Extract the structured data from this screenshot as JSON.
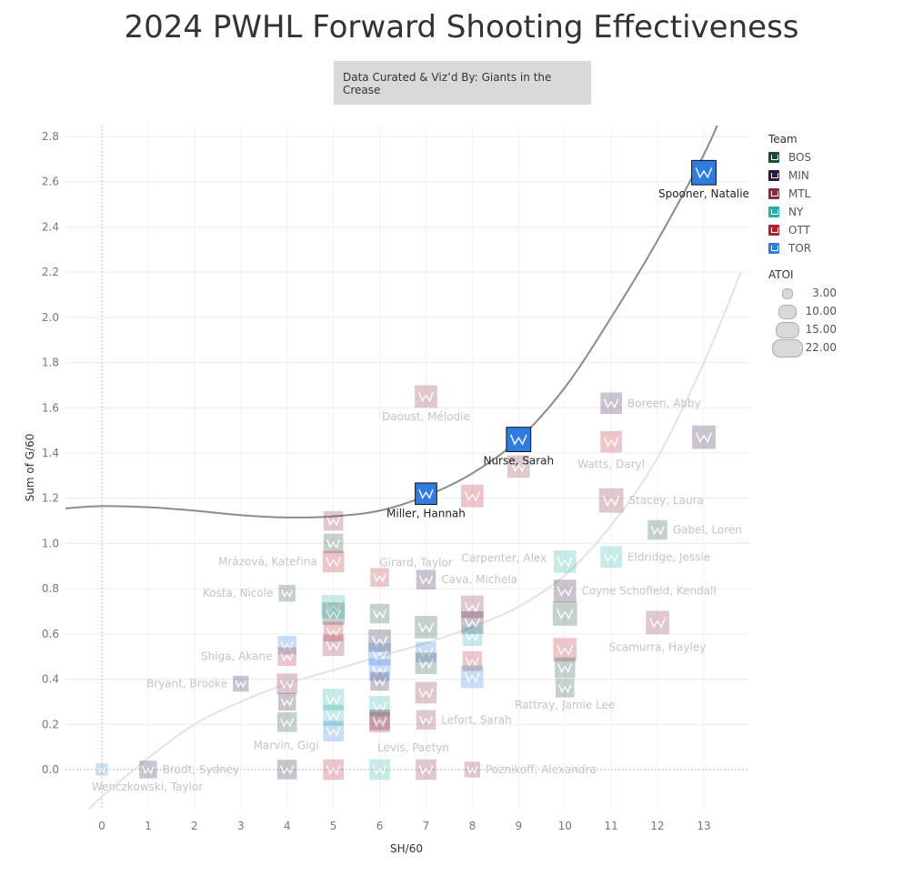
{
  "title": "2024 PWHL Forward Shooting Effectiveness",
  "subtitle": "Data Curated & Viz’d By: Giants in the Crease",
  "legend": {
    "team_title": "Team",
    "teams": [
      {
        "name": "BOS",
        "color": "#1e4a3d"
      },
      {
        "name": "MIN",
        "color": "#2e1a47"
      },
      {
        "name": "MTL",
        "color": "#8b2a3a"
      },
      {
        "name": "NY",
        "color": "#1fb3a8"
      },
      {
        "name": "OTT",
        "color": "#b8202f"
      },
      {
        "name": "TOR",
        "color": "#2f7de1"
      }
    ],
    "size_title": "ATOI",
    "sizes": [
      {
        "label": "3.00",
        "value": 3
      },
      {
        "label": "10.00",
        "value": 10
      },
      {
        "label": "15.00",
        "value": 15
      },
      {
        "label": "22.00",
        "value": 22
      }
    ]
  },
  "chart_data": {
    "type": "scatter",
    "title": "2024 PWHL Forward Shooting Effectiveness",
    "xlabel": "SH/60",
    "ylabel": "Sum of G/60",
    "xlim": [
      -0.8,
      13.8
    ],
    "ylim": [
      -0.18,
      2.84
    ],
    "xticks": [
      "0",
      "1",
      "2",
      "3",
      "4",
      "5",
      "6",
      "7",
      "8",
      "9",
      "10",
      "11",
      "12",
      "13"
    ],
    "yticks": [
      "0.0",
      "0.2",
      "0.4",
      "0.6",
      "0.8",
      "1.0",
      "1.2",
      "1.4",
      "1.6",
      "1.8",
      "2.0",
      "2.2",
      "2.4",
      "2.6",
      "2.8"
    ],
    "grid": true,
    "legend_position": "right",
    "trend_lines": [
      {
        "name": "upper",
        "color": "#8c8c8c",
        "points": [
          [
            -0.8,
            1.155
          ],
          [
            0,
            1.165
          ],
          [
            1,
            1.16
          ],
          [
            2,
            1.145
          ],
          [
            3,
            1.125
          ],
          [
            4,
            1.115
          ],
          [
            5,
            1.12
          ],
          [
            6,
            1.145
          ],
          [
            7,
            1.21
          ],
          [
            8,
            1.31
          ],
          [
            9,
            1.46
          ],
          [
            10,
            1.69
          ],
          [
            11,
            2.0
          ],
          [
            12,
            2.34
          ],
          [
            13,
            2.72
          ],
          [
            13.5,
            2.95
          ]
        ]
      },
      {
        "name": "lower",
        "color": "#e3e3e3",
        "points": [
          [
            -0.3,
            -0.18
          ],
          [
            0,
            -0.12
          ],
          [
            1,
            0.05
          ],
          [
            2,
            0.2
          ],
          [
            3,
            0.3
          ],
          [
            4,
            0.38
          ],
          [
            5,
            0.44
          ],
          [
            6,
            0.5
          ],
          [
            7,
            0.56
          ],
          [
            8,
            0.63
          ],
          [
            9,
            0.72
          ],
          [
            10,
            0.86
          ],
          [
            11,
            1.08
          ],
          [
            12,
            1.38
          ],
          [
            13,
            1.8
          ],
          [
            13.8,
            2.2
          ]
        ]
      }
    ],
    "points": [
      {
        "label": "Spooner, Natalie",
        "x": 13.0,
        "y": 2.64,
        "team": "TOR",
        "atoi": 19,
        "highlight": true
      },
      {
        "label": "Nurse, Sarah",
        "x": 9.0,
        "y": 1.46,
        "team": "TOR",
        "atoi": 19,
        "highlight": true
      },
      {
        "label": "Miller, Hannah",
        "x": 7.0,
        "y": 1.22,
        "team": "TOR",
        "atoi": 16,
        "highlight": true
      },
      {
        "label": "Daoust, Mélodie",
        "x": 7.0,
        "y": 1.65,
        "team": "MTL",
        "atoi": 17,
        "highlight": false
      },
      {
        "label": "Boreen, Abby",
        "x": 11.0,
        "y": 1.62,
        "team": "MIN",
        "atoi": 16,
        "highlight": false
      },
      {
        "label": "",
        "x": 13.0,
        "y": 1.47,
        "team": "MIN",
        "atoi": 18,
        "highlight": false
      },
      {
        "label": "Watts, Daryl",
        "x": 11.0,
        "y": 1.45,
        "team": "OTT",
        "atoi": 16,
        "highlight": false
      },
      {
        "label": "",
        "x": 9.0,
        "y": 1.34,
        "team": "MTL",
        "atoi": 17,
        "highlight": false
      },
      {
        "label": "",
        "x": 8.0,
        "y": 1.21,
        "team": "OTT",
        "atoi": 17,
        "highlight": false
      },
      {
        "label": "Stacey, Laura",
        "x": 11.0,
        "y": 1.19,
        "team": "MTL",
        "atoi": 19,
        "highlight": false
      },
      {
        "label": "Gabel, Loren",
        "x": 12.0,
        "y": 1.06,
        "team": "BOS",
        "atoi": 14,
        "highlight": false
      },
      {
        "label": "",
        "x": 5.0,
        "y": 1.1,
        "team": "MTL",
        "atoi": 14,
        "highlight": false
      },
      {
        "label": "",
        "x": 5.0,
        "y": 1.0,
        "team": "BOS",
        "atoi": 14,
        "highlight": false
      },
      {
        "label": "Eldridge, Jessie",
        "x": 11.0,
        "y": 0.94,
        "team": "NY",
        "atoi": 16,
        "highlight": false
      },
      {
        "label": "Carpenter, Alex",
        "x": 10.0,
        "y": 0.92,
        "team": "NY",
        "atoi": 17,
        "highlight": false
      },
      {
        "label": "Mrázová, Kateřina",
        "x": 5.0,
        "y": 0.92,
        "team": "OTT",
        "atoi": 16,
        "highlight": false
      },
      {
        "label": "Girard, Taylor",
        "x": 6.0,
        "y": 0.85,
        "team": "OTT",
        "atoi": 13,
        "highlight": false
      },
      {
        "label": "Cava, Michela",
        "x": 7.0,
        "y": 0.84,
        "team": "MIN",
        "atoi": 14,
        "highlight": false
      },
      {
        "label": "Coyne Schofield, Kendall",
        "x": 10.0,
        "y": 0.79,
        "team": "MIN",
        "atoi": 17,
        "highlight": false
      },
      {
        "label": "Kosta, Nicole",
        "x": 4.0,
        "y": 0.78,
        "team": "BOS",
        "atoi": 11,
        "highlight": false
      },
      {
        "label": "",
        "x": 5.0,
        "y": 0.72,
        "team": "NY",
        "atoi": 18,
        "highlight": false
      },
      {
        "label": "",
        "x": 5.0,
        "y": 0.69,
        "team": "BOS",
        "atoi": 17,
        "highlight": false
      },
      {
        "label": "",
        "x": 6.0,
        "y": 0.69,
        "team": "BOS",
        "atoi": 14,
        "highlight": false
      },
      {
        "label": "",
        "x": 8.0,
        "y": 0.72,
        "team": "MTL",
        "atoi": 17,
        "highlight": false
      },
      {
        "label": "",
        "x": 8.0,
        "y": 0.65,
        "team": "MIN",
        "atoi": 17,
        "highlight": false
      },
      {
        "label": "",
        "x": 10.0,
        "y": 0.69,
        "team": "BOS",
        "atoi": 19,
        "highlight": false
      },
      {
        "label": "",
        "x": 7.0,
        "y": 0.63,
        "team": "BOS",
        "atoi": 17,
        "highlight": false
      },
      {
        "label": "Scamurra, Hayley",
        "x": 12.0,
        "y": 0.65,
        "team": "MTL",
        "atoi": 18,
        "highlight": false
      },
      {
        "label": "",
        "x": 8.0,
        "y": 0.59,
        "team": "NY",
        "atoi": 14,
        "highlight": false
      },
      {
        "label": "",
        "x": 5.0,
        "y": 0.61,
        "team": "OTT",
        "atoi": 14,
        "highlight": false
      },
      {
        "label": "",
        "x": 6.0,
        "y": 0.57,
        "team": "MIN",
        "atoi": 17,
        "highlight": false
      },
      {
        "label": "",
        "x": 5.0,
        "y": 0.55,
        "team": "MTL",
        "atoi": 16,
        "highlight": false
      },
      {
        "label": "",
        "x": 4.0,
        "y": 0.55,
        "team": "TOR",
        "atoi": 13,
        "highlight": false
      },
      {
        "label": "",
        "x": 7.0,
        "y": 0.52,
        "team": "TOR",
        "atoi": 15,
        "highlight": false
      },
      {
        "label": "",
        "x": 6.0,
        "y": 0.51,
        "team": "TOR",
        "atoi": 17,
        "highlight": false
      },
      {
        "label": "",
        "x": 10.0,
        "y": 0.53,
        "team": "OTT",
        "atoi": 18,
        "highlight": false
      },
      {
        "label": "Shiga, Akane",
        "x": 4.0,
        "y": 0.5,
        "team": "OTT",
        "atoi": 13,
        "highlight": false
      },
      {
        "label": "",
        "x": 8.0,
        "y": 0.48,
        "team": "OTT",
        "atoi": 14,
        "highlight": false
      },
      {
        "label": "",
        "x": 7.0,
        "y": 0.47,
        "team": "BOS",
        "atoi": 16,
        "highlight": false
      },
      {
        "label": "",
        "x": 10.0,
        "y": 0.45,
        "team": "BOS",
        "atoi": 15,
        "highlight": false
      },
      {
        "label": "",
        "x": 6.0,
        "y": 0.44,
        "team": "TOR",
        "atoi": 16,
        "highlight": false
      },
      {
        "label": "",
        "x": 8.0,
        "y": 0.41,
        "team": "TOR",
        "atoi": 17,
        "highlight": false
      },
      {
        "label": "Bryant, Brooke",
        "x": 3.0,
        "y": 0.38,
        "team": "MIN",
        "atoi": 10,
        "highlight": false
      },
      {
        "label": "",
        "x": 4.0,
        "y": 0.38,
        "team": "MTL",
        "atoi": 15,
        "highlight": false
      },
      {
        "label": "",
        "x": 6.0,
        "y": 0.39,
        "team": "MIN",
        "atoi": 13,
        "highlight": false
      },
      {
        "label": "Rattray, Jamie Lee",
        "x": 10.0,
        "y": 0.36,
        "team": "BOS",
        "atoi": 13,
        "highlight": false
      },
      {
        "label": "",
        "x": 7.0,
        "y": 0.34,
        "team": "MTL",
        "atoi": 16,
        "highlight": false
      },
      {
        "label": "",
        "x": 5.0,
        "y": 0.31,
        "team": "NY",
        "atoi": 16,
        "highlight": false
      },
      {
        "label": "",
        "x": 4.0,
        "y": 0.3,
        "team": "MIN",
        "atoi": 12,
        "highlight": false
      },
      {
        "label": "",
        "x": 6.0,
        "y": 0.28,
        "team": "NY",
        "atoi": 15,
        "highlight": false
      },
      {
        "label": "",
        "x": 5.0,
        "y": 0.24,
        "team": "NY",
        "atoi": 15,
        "highlight": false
      },
      {
        "label": "Lefort, Sarah",
        "x": 7.0,
        "y": 0.22,
        "team": "MTL",
        "atoi": 14,
        "highlight": false
      },
      {
        "label": "",
        "x": 4.0,
        "y": 0.21,
        "team": "BOS",
        "atoi": 14,
        "highlight": false
      },
      {
        "label": "",
        "x": 6.0,
        "y": 0.22,
        "team": "MIN",
        "atoi": 15,
        "highlight": false
      },
      {
        "label": "",
        "x": 6.0,
        "y": 0.21,
        "team": "OTT",
        "atoi": 15,
        "highlight": false
      },
      {
        "label": "Marvin, Gigi",
        "x": 5.0,
        "y": 0.17,
        "team": "TOR",
        "atoi": 15,
        "highlight": false
      },
      {
        "label": "Levis, Paetyn",
        "x": 6.0,
        "y": 0.0,
        "team": "NY",
        "atoi": 15,
        "highlight": false
      },
      {
        "label": "Wenczkowski, Taylor",
        "x": 0.0,
        "y": 0.0,
        "team": "TOR",
        "atoi": 6,
        "highlight": false
      },
      {
        "label": "Brodt, Sydney",
        "x": 1.0,
        "y": 0.0,
        "team": "MIN",
        "atoi": 12,
        "highlight": false
      },
      {
        "label": "",
        "x": 4.0,
        "y": 0.0,
        "team": "MIN",
        "atoi": 14,
        "highlight": false
      },
      {
        "label": "",
        "x": 5.0,
        "y": 0.0,
        "team": "OTT",
        "atoi": 15,
        "highlight": false
      },
      {
        "label": "",
        "x": 7.0,
        "y": 0.0,
        "team": "MTL",
        "atoi": 15,
        "highlight": false
      },
      {
        "label": "Poznikoff, Alexandra",
        "x": 8.0,
        "y": 0.0,
        "team": "MTL",
        "atoi": 10,
        "highlight": false
      }
    ]
  }
}
